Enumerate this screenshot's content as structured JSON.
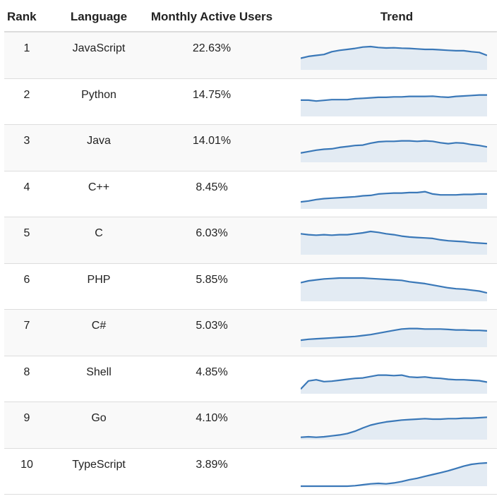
{
  "headers": {
    "rank": "Rank",
    "language": "Language",
    "mau": "Monthly Active Users",
    "trend": "Trend"
  },
  "colors": {
    "line": "#3a78b8",
    "fill": "#e3ebf3"
  },
  "rows": [
    {
      "rank": "1",
      "language": "JavaScript",
      "mau": "22.63%",
      "trend": [
        0.5,
        0.58,
        0.62,
        0.66,
        0.78,
        0.84,
        0.88,
        0.92,
        0.98,
        1.0,
        0.96,
        0.94,
        0.95,
        0.93,
        0.92,
        0.9,
        0.88,
        0.88,
        0.86,
        0.84,
        0.82,
        0.82,
        0.78,
        0.75,
        0.62
      ]
    },
    {
      "rank": "2",
      "language": "Python",
      "mau": "14.75%",
      "trend": [
        0.7,
        0.7,
        0.66,
        0.69,
        0.72,
        0.72,
        0.72,
        0.76,
        0.78,
        0.8,
        0.82,
        0.82,
        0.84,
        0.84,
        0.86,
        0.86,
        0.86,
        0.87,
        0.84,
        0.82,
        0.86,
        0.88,
        0.9,
        0.92,
        0.92
      ]
    },
    {
      "rank": "3",
      "language": "Java",
      "mau": "14.01%",
      "trend": [
        0.4,
        0.46,
        0.52,
        0.56,
        0.58,
        0.64,
        0.68,
        0.72,
        0.74,
        0.82,
        0.88,
        0.9,
        0.9,
        0.92,
        0.92,
        0.9,
        0.92,
        0.9,
        0.84,
        0.8,
        0.84,
        0.82,
        0.76,
        0.72,
        0.66
      ]
    },
    {
      "rank": "4",
      "language": "C++",
      "mau": "8.45%",
      "trend": [
        0.3,
        0.34,
        0.4,
        0.44,
        0.46,
        0.48,
        0.5,
        0.52,
        0.56,
        0.58,
        0.64,
        0.66,
        0.68,
        0.68,
        0.7,
        0.7,
        0.74,
        0.64,
        0.6,
        0.6,
        0.6,
        0.62,
        0.62,
        0.64,
        0.64
      ]
    },
    {
      "rank": "5",
      "language": "C",
      "mau": "6.03%",
      "trend": [
        0.9,
        0.86,
        0.84,
        0.86,
        0.84,
        0.86,
        0.86,
        0.9,
        0.94,
        1.0,
        0.96,
        0.9,
        0.86,
        0.8,
        0.76,
        0.74,
        0.72,
        0.7,
        0.64,
        0.6,
        0.58,
        0.56,
        0.52,
        0.5,
        0.48
      ]
    },
    {
      "rank": "6",
      "language": "PHP",
      "mau": "5.85%",
      "trend": [
        0.8,
        0.88,
        0.92,
        0.96,
        0.98,
        1.0,
        1.0,
        1.0,
        1.0,
        0.98,
        0.96,
        0.94,
        0.92,
        0.9,
        0.84,
        0.8,
        0.76,
        0.7,
        0.64,
        0.58,
        0.54,
        0.52,
        0.48,
        0.44,
        0.36
      ]
    },
    {
      "rank": "7",
      "language": "C#",
      "mau": "5.03%",
      "trend": [
        0.3,
        0.34,
        0.36,
        0.38,
        0.4,
        0.42,
        0.44,
        0.46,
        0.5,
        0.54,
        0.6,
        0.66,
        0.72,
        0.78,
        0.8,
        0.8,
        0.78,
        0.78,
        0.78,
        0.76,
        0.74,
        0.74,
        0.72,
        0.72,
        0.7
      ]
    },
    {
      "rank": "8",
      "language": "Shell",
      "mau": "4.85%",
      "trend": [
        0.2,
        0.55,
        0.6,
        0.52,
        0.54,
        0.58,
        0.62,
        0.66,
        0.68,
        0.74,
        0.8,
        0.8,
        0.78,
        0.8,
        0.72,
        0.7,
        0.72,
        0.68,
        0.66,
        0.62,
        0.6,
        0.6,
        0.58,
        0.56,
        0.5
      ]
    },
    {
      "rank": "9",
      "language": "Go",
      "mau": "4.10%",
      "trend": [
        0.1,
        0.12,
        0.1,
        0.12,
        0.16,
        0.2,
        0.26,
        0.36,
        0.5,
        0.62,
        0.7,
        0.76,
        0.8,
        0.84,
        0.86,
        0.88,
        0.9,
        0.88,
        0.88,
        0.9,
        0.9,
        0.92,
        0.92,
        0.94,
        0.96
      ]
    },
    {
      "rank": "10",
      "language": "TypeScript",
      "mau": "3.89%",
      "trend": [
        0.0,
        0.0,
        0.0,
        0.0,
        0.0,
        0.0,
        0.0,
        0.02,
        0.06,
        0.1,
        0.12,
        0.1,
        0.14,
        0.2,
        0.28,
        0.34,
        0.42,
        0.5,
        0.58,
        0.66,
        0.76,
        0.86,
        0.94,
        0.98,
        1.0
      ]
    }
  ]
}
